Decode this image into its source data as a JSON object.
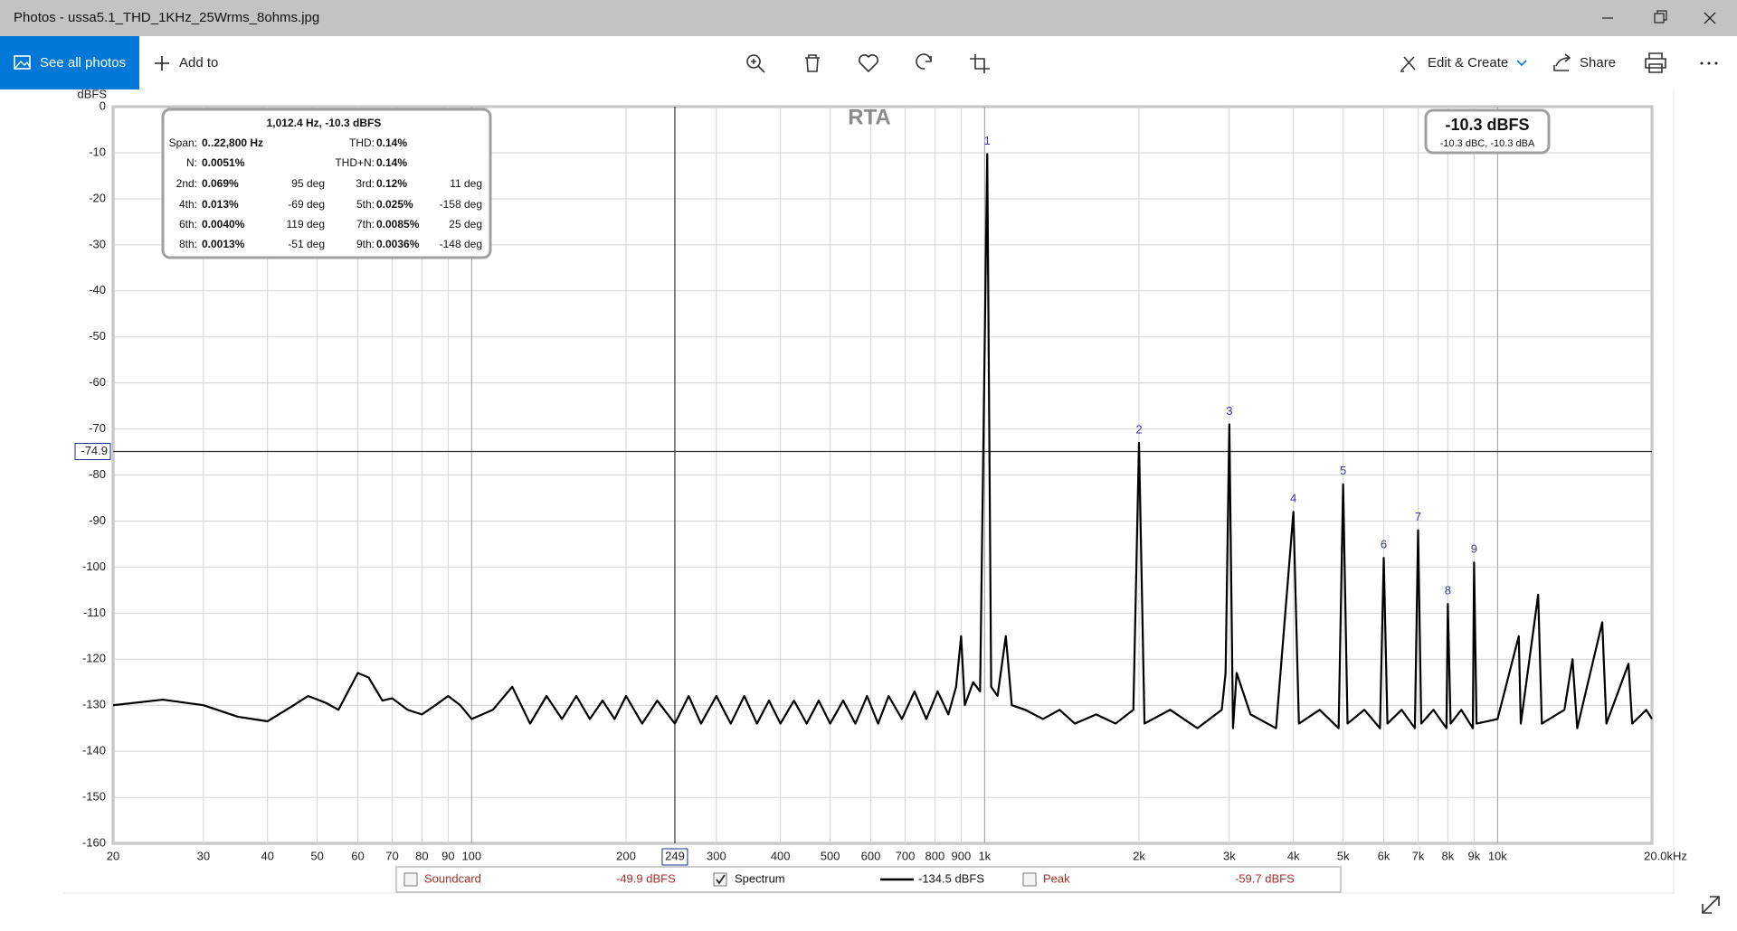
{
  "window": {
    "title": "Photos - ussa5.1_THD_1KHz_25Wrms_8ohms.jpg"
  },
  "toolbar": {
    "see_all": "See all photos",
    "add_to": "Add to",
    "edit_create": "Edit & Create",
    "share": "Share"
  },
  "chart_data": {
    "type": "line",
    "title": "RTA",
    "y_label": "dBFS",
    "log_x": true,
    "grid": true,
    "xlim": [
      20,
      20000
    ],
    "ylim": [
      -160,
      0
    ],
    "xticks": [
      20,
      30,
      40,
      50,
      60,
      70,
      80,
      90,
      100,
      200,
      300,
      400,
      500,
      600,
      700,
      800,
      900,
      {
        "value": 1000,
        "label": "1k"
      },
      {
        "value": 2000,
        "label": "2k"
      },
      {
        "value": 3000,
        "label": "3k"
      },
      {
        "value": 4000,
        "label": "4k"
      },
      {
        "value": 5000,
        "label": "5k"
      },
      {
        "value": 6000,
        "label": "6k"
      },
      {
        "value": 7000,
        "label": "7k"
      },
      {
        "value": 8000,
        "label": "8k"
      },
      {
        "value": 9000,
        "label": "9k"
      },
      {
        "value": 10000,
        "label": "10k"
      },
      {
        "value": 20000,
        "label": "20.0kHz"
      }
    ],
    "yticks": [
      0,
      -10,
      -20,
      -30,
      -40,
      -50,
      -60,
      -70,
      -80,
      -90,
      -100,
      -110,
      -120,
      -130,
      -140,
      -150,
      -160
    ],
    "x": [
      20,
      25,
      30,
      35,
      40,
      45,
      48,
      52,
      55,
      60,
      63,
      67,
      70,
      75,
      80,
      85,
      90,
      95,
      100,
      110,
      120,
      130,
      140,
      150,
      160,
      170,
      180,
      190,
      200,
      215,
      230,
      249,
      265,
      280,
      300,
      320,
      340,
      360,
      380,
      400,
      425,
      450,
      475,
      500,
      530,
      560,
      590,
      620,
      650,
      690,
      730,
      770,
      810,
      850,
      880,
      900,
      915,
      950,
      980,
      1012,
      1030,
      1060,
      1100,
      1130,
      1200,
      1300,
      1400,
      1500,
      1650,
      1800,
      1950,
      2000,
      2050,
      2300,
      2600,
      2900,
      2950,
      3000,
      3050,
      3100,
      3300,
      3700,
      4000,
      4100,
      4500,
      4900,
      5000,
      5100,
      5500,
      5900,
      6000,
      6100,
      6500,
      6900,
      7000,
      7100,
      7500,
      7950,
      8000,
      8100,
      8500,
      8950,
      9000,
      9100,
      10000,
      11000,
      11100,
      12000,
      12200,
      13500,
      14000,
      14300,
      16000,
      16300,
      18000,
      18300,
      19500,
      20000
    ],
    "series": [
      {
        "name": "Spectrum",
        "color": "#000000",
        "reading": "-134.5 dBFS",
        "checked": true,
        "values": [
          -130,
          -128.8,
          -130,
          -132.5,
          -133.5,
          -130,
          -128,
          -129.5,
          -131,
          -123,
          -124,
          -129,
          -128.5,
          -131,
          -132,
          -130,
          -128,
          -130,
          -133,
          -131,
          -126,
          -134,
          -128,
          -133,
          -128,
          -133,
          -129,
          -133,
          -128,
          -134,
          -129,
          -134,
          -128,
          -134,
          -128,
          -134,
          -128,
          -134,
          -129,
          -134,
          -129,
          -134,
          -129,
          -134,
          -129,
          -134,
          -128,
          -134,
          -128,
          -133,
          -127,
          -133,
          -127,
          -132,
          -126,
          -115,
          -130,
          -125,
          -127,
          -10.3,
          -126,
          -128,
          -115,
          -130,
          -131,
          -133,
          -131,
          -134,
          -132,
          -134,
          -131,
          -73,
          -134,
          -131,
          -135,
          -131,
          -123,
          -69,
          -135,
          -123,
          -132,
          -135,
          -88,
          -134,
          -131,
          -135,
          -82,
          -134,
          -131,
          -135,
          -98,
          -134,
          -131,
          -135,
          -92,
          -134,
          -131,
          -135,
          -108,
          -134,
          -131,
          -135,
          -99,
          -134,
          -133,
          -115,
          -134,
          -106,
          -134,
          -131,
          -120,
          -135,
          -112,
          -134,
          -121,
          -134,
          -131,
          -133
        ]
      }
    ],
    "other_legend": [
      {
        "name": "Soundcard",
        "reading": "-49.9 dBFS",
        "checked": false
      },
      {
        "name": "Peak",
        "reading": "-59.7 dBFS",
        "checked": false
      }
    ],
    "harmonic_labels": [
      {
        "label": "1",
        "x": 1012,
        "y": -10.3
      },
      {
        "label": "2",
        "x": 2000,
        "y": -73
      },
      {
        "label": "3",
        "x": 3000,
        "y": -69
      },
      {
        "label": "4",
        "x": 4000,
        "y": -88
      },
      {
        "label": "5",
        "x": 5000,
        "y": -82
      },
      {
        "label": "6",
        "x": 6000,
        "y": -98
      },
      {
        "label": "7",
        "x": 7000,
        "y": -92
      },
      {
        "label": "8",
        "x": 8000,
        "y": -108
      },
      {
        "label": "9",
        "x": 9000,
        "y": -99
      }
    ],
    "cursor": {
      "x": 249,
      "y": -74.9
    },
    "info_box": {
      "header": "1,012.4 Hz, -10.3 dBFS",
      "rows": [
        [
          [
            "Span:",
            "0..22,800 Hz"
          ],
          [
            "THD:",
            "0.14%"
          ]
        ],
        [
          [
            "N:",
            "0.0051%"
          ],
          [
            "THD+N:",
            "0.14%"
          ]
        ],
        [
          [
            "2nd:",
            "0.069%",
            "95 deg"
          ],
          [
            "3rd:",
            "0.12%",
            "11 deg"
          ]
        ],
        [
          [
            "4th:",
            "0.013%",
            "-69 deg"
          ],
          [
            "5th:",
            "0.025%",
            "-158 deg"
          ]
        ],
        [
          [
            "6th:",
            "0.0040%",
            "119 deg"
          ],
          [
            "7th:",
            "0.0085%",
            "25 deg"
          ]
        ],
        [
          [
            "8th:",
            "0.0013%",
            "-51 deg"
          ],
          [
            "9th:",
            "0.0036%",
            "-148 deg"
          ]
        ]
      ]
    },
    "level_box": {
      "main": "-10.3 dBFS",
      "sub": "-10.3 dBC, -10.3 dBA"
    }
  }
}
